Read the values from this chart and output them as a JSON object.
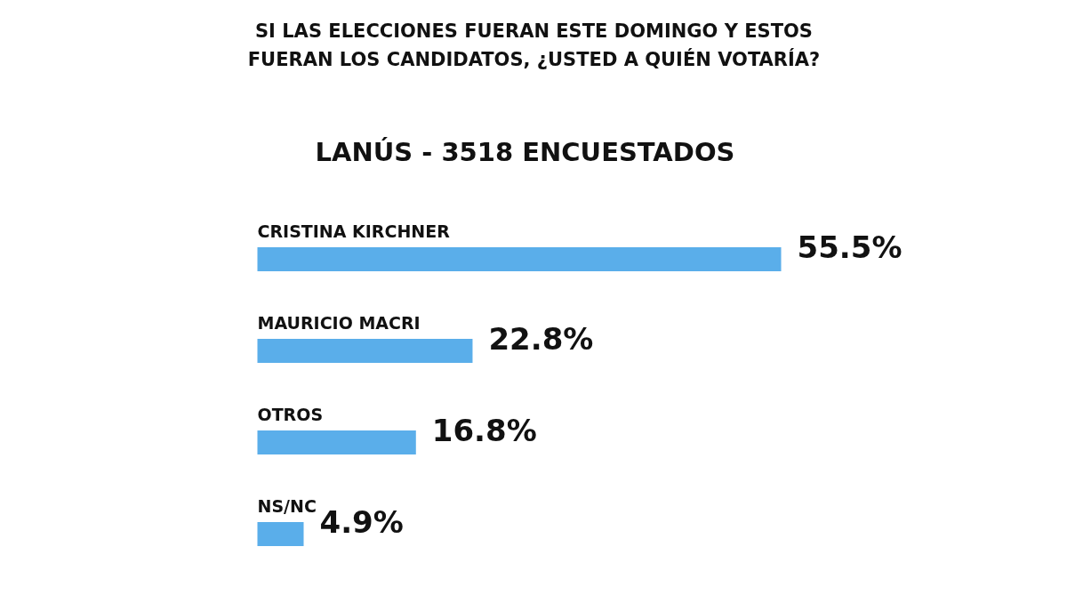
{
  "chart_data": {
    "type": "bar",
    "orientation": "horizontal",
    "title": "SI LAS ELECCIONES FUERAN ESTE DOMINGO Y ESTOS FUERAN LOS CANDIDATOS, ¿USTED A QUIÉN VOTARÍA?",
    "subtitle": "LANÚS - 3518 ENCUESTADOS",
    "categories": [
      "CRISTINA KIRCHNER",
      "MAURICIO MACRI",
      "OTROS",
      "NS/NC"
    ],
    "values": [
      55.5,
      22.8,
      16.8,
      4.9
    ],
    "value_labels": [
      "55.5%",
      "22.8%",
      "16.8%",
      "4.9%"
    ],
    "color": "#5aaeea"
  }
}
